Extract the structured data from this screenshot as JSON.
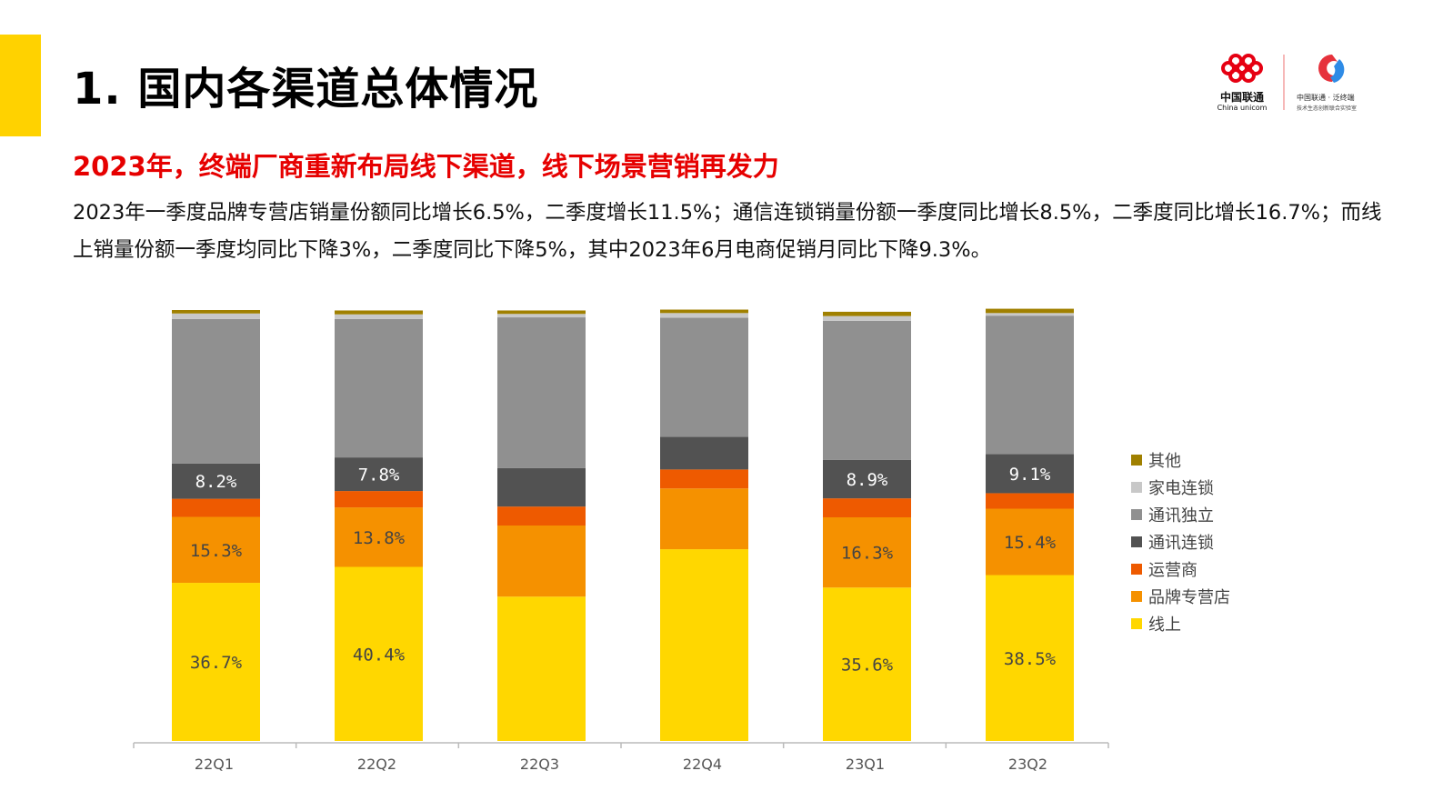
{
  "header": {
    "title": "1. 国内各渠道总体情况",
    "subtitle": "2023年，终端厂商重新布局线下渠道，线下场景营销再发力",
    "body": "2023年一季度品牌专营店销量份额同比增长6.5%，二季度增长11.5%；通信连锁销量份额一季度同比增长8.5%，二季度同比增长16.7%；而线上销量份额一季度均同比下降3%，二季度同比下降5%，其中2023年6月电商促销月同比下降9.3%。"
  },
  "logo": {
    "brand": "中国联通",
    "brand_en": "China unicom",
    "partner": "中国联通 · 泛终端",
    "partner_sub": "技术生态创新联合实验室"
  },
  "chart_data": {
    "type": "bar",
    "stacked": true,
    "categories": [
      "22Q1",
      "22Q2",
      "22Q3",
      "22Q4",
      "23Q1",
      "23Q2"
    ],
    "ylim": [
      0,
      100
    ],
    "grid": false,
    "legend_position": "right",
    "series": [
      {
        "name": "线上",
        "color": "#FFD700",
        "values": [
          36.7,
          40.4,
          33.5,
          44.5,
          35.6,
          38.5
        ],
        "labels": [
          "36.7%",
          "40.4%",
          "",
          "",
          "35.6%",
          "38.5%"
        ],
        "label_color": "#444444"
      },
      {
        "name": "品牌专营店",
        "color": "#F59100",
        "values": [
          15.3,
          13.8,
          16.5,
          14.1,
          16.3,
          15.4
        ],
        "labels": [
          "15.3%",
          "13.8%",
          "",
          "",
          "16.3%",
          "15.4%"
        ],
        "label_color": "#444444"
      },
      {
        "name": "运营商",
        "color": "#EE5A00",
        "values": [
          4.2,
          3.8,
          4.4,
          4.4,
          4.4,
          3.6
        ],
        "labels": [
          "",
          "",
          "",
          "",
          "",
          ""
        ],
        "label_color": "#ffffff"
      },
      {
        "name": "通讯连锁",
        "color": "#525252",
        "values": [
          8.2,
          7.8,
          8.9,
          7.6,
          8.9,
          9.1
        ],
        "labels": [
          "8.2%",
          "7.8%",
          "",
          "",
          "8.9%",
          "9.1%"
        ],
        "label_color": "#ffffff"
      },
      {
        "name": "通讯独立",
        "color": "#909090",
        "values": [
          33.5,
          32.1,
          35.0,
          27.6,
          32.3,
          32.1
        ],
        "labels": [
          "",
          "",
          "",
          "",
          "",
          ""
        ],
        "label_color": "#ffffff"
      },
      {
        "name": "家电连锁",
        "color": "#C8C8C8",
        "values": [
          1.3,
          1.1,
          0.8,
          1.1,
          1.1,
          0.6
        ],
        "labels": [
          "",
          "",
          "",
          "",
          "",
          ""
        ],
        "label_color": "#ffffff"
      },
      {
        "name": "其他",
        "color": "#A08000",
        "values": [
          0.8,
          0.9,
          0.8,
          0.8,
          1.0,
          1.0
        ],
        "labels": [
          "",
          "",
          "",
          "",
          "",
          ""
        ],
        "label_color": "#ffffff"
      }
    ]
  }
}
